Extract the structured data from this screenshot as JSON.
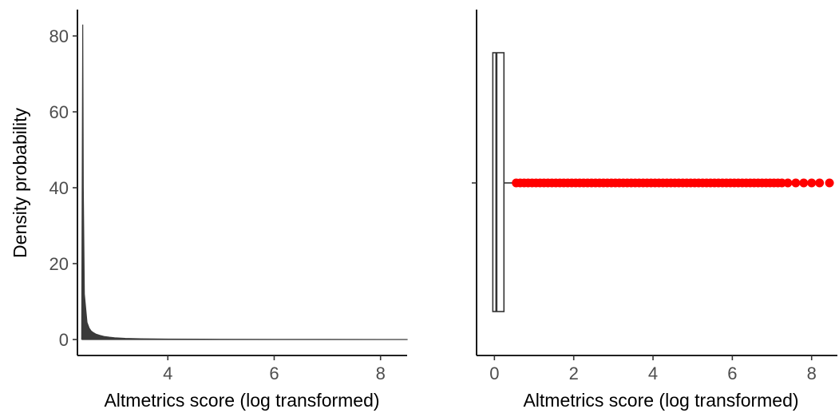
{
  "chart_data": [
    {
      "type": "area",
      "subtype": "density",
      "xlabel": "Altmetrics score (log transformed)",
      "ylabel": "Density probability",
      "xlim": [
        2.3,
        8.5
      ],
      "ylim": [
        0,
        85
      ],
      "x_ticks": [
        4,
        6,
        8
      ],
      "y_ticks": [
        0,
        20,
        40,
        60,
        80
      ],
      "grid": false,
      "x": [
        2.38,
        2.4,
        2.41,
        2.43,
        2.45,
        2.48,
        2.52,
        2.56,
        2.6,
        2.65,
        2.72,
        2.8,
        2.9,
        3.0,
        3.2,
        3.5,
        4.0,
        5.0,
        6.0,
        7.0,
        8.0,
        8.5
      ],
      "y": [
        0,
        83,
        40,
        12,
        9,
        4.5,
        3,
        2.2,
        1.8,
        1.4,
        1.1,
        0.8,
        0.6,
        0.45,
        0.3,
        0.2,
        0.12,
        0.06,
        0.04,
        0.02,
        0.01,
        0.01
      ]
    },
    {
      "type": "box",
      "xlabel": "Altmetrics score (log transformed)",
      "xlim": [
        -0.45,
        8.65
      ],
      "x_ticks": [
        0,
        2,
        4,
        6,
        8
      ],
      "grid": false,
      "box": {
        "min": 0,
        "q1": 0,
        "median": 0.05,
        "q3": 0.2,
        "whisker_high": 0.5
      },
      "outliers": [
        0.55,
        0.65,
        0.75,
        0.85,
        0.95,
        1.05,
        1.15,
        1.25,
        1.35,
        1.45,
        1.55,
        1.65,
        1.75,
        1.85,
        1.95,
        2.05,
        2.15,
        2.25,
        2.35,
        2.45,
        2.55,
        2.65,
        2.75,
        2.85,
        2.95,
        3.05,
        3.15,
        3.25,
        3.35,
        3.45,
        3.55,
        3.65,
        3.75,
        3.85,
        3.95,
        4.05,
        4.15,
        4.25,
        4.35,
        4.45,
        4.55,
        4.65,
        4.75,
        4.85,
        4.95,
        5.05,
        5.15,
        5.25,
        5.35,
        5.45,
        5.55,
        5.65,
        5.75,
        5.85,
        5.95,
        6.05,
        6.15,
        6.25,
        6.35,
        6.45,
        6.55,
        6.65,
        6.75,
        6.85,
        6.95,
        7.05,
        7.15,
        7.25,
        7.4,
        7.6,
        7.8,
        8.0,
        8.2,
        8.45
      ],
      "outlier_color": "#ff0000"
    }
  ],
  "colors": {
    "density_fill": "#3a3a3a",
    "axis": "#000000",
    "tick_text": "#4d4d4d",
    "outlier": "#ff0000"
  }
}
